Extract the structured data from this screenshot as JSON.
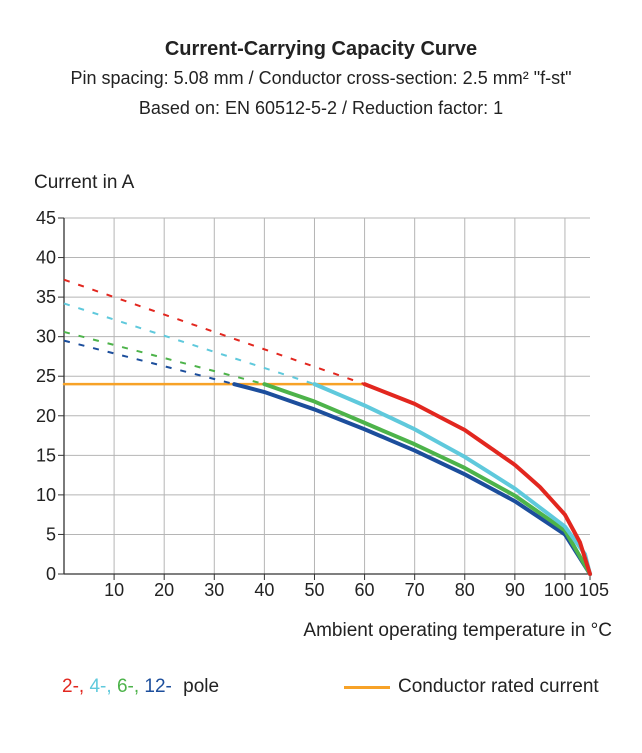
{
  "chart_data": {
    "type": "line",
    "title": "Current-Carrying Capacity Curve",
    "subtitle_1": "Pin spacing: 5.08 mm / Conductor cross-section: 2.5 mm² \"f-st\"",
    "subtitle_2": "Based on: EN 60512-5-2 / Reduction factor: 1",
    "ylabel": "Current in A",
    "xlabel": "Ambient operating temperature in °C",
    "xlim": [
      0,
      105
    ],
    "ylim": [
      0,
      45
    ],
    "x_ticks": [
      "10",
      "20",
      "30",
      "40",
      "50",
      "60",
      "70",
      "80",
      "90",
      "100",
      "105"
    ],
    "y_ticks": [
      "0",
      "5",
      "10",
      "15",
      "20",
      "25",
      "30",
      "35",
      "40",
      "45"
    ],
    "grid": true,
    "series": [
      {
        "name": "2-",
        "color": "#e2271f",
        "dashed": [
          [
            0,
            37.2
          ],
          [
            60,
            24
          ]
        ],
        "values": [
          [
            60,
            24
          ],
          [
            70,
            21.5
          ],
          [
            80,
            18.2
          ],
          [
            90,
            13.8
          ],
          [
            95,
            11
          ],
          [
            100,
            7.5
          ],
          [
            103,
            4
          ],
          [
            105,
            0
          ]
        ]
      },
      {
        "name": "4-",
        "color": "#5fc9dc",
        "dashed": [
          [
            0,
            34.2
          ],
          [
            50,
            24
          ]
        ],
        "values": [
          [
            50,
            24
          ],
          [
            60,
            21.3
          ],
          [
            70,
            18.3
          ],
          [
            80,
            14.8
          ],
          [
            90,
            10.8
          ],
          [
            100,
            6
          ],
          [
            104,
            2.5
          ],
          [
            105,
            0
          ]
        ]
      },
      {
        "name": "6-",
        "color": "#4db34a",
        "dashed": [
          [
            0,
            30.6
          ],
          [
            40,
            24
          ]
        ],
        "values": [
          [
            40,
            24
          ],
          [
            50,
            21.8
          ],
          [
            60,
            19.1
          ],
          [
            70,
            16.4
          ],
          [
            80,
            13.4
          ],
          [
            90,
            9.9
          ],
          [
            100,
            5.5
          ],
          [
            105,
            0
          ]
        ]
      },
      {
        "name": "12-",
        "color": "#1c4e9c",
        "dashed": [
          [
            0,
            29.5
          ],
          [
            34,
            24
          ]
        ],
        "values": [
          [
            34,
            24
          ],
          [
            40,
            23
          ],
          [
            50,
            20.8
          ],
          [
            60,
            18.3
          ],
          [
            70,
            15.6
          ],
          [
            80,
            12.6
          ],
          [
            90,
            9.2
          ],
          [
            100,
            5
          ],
          [
            105,
            0
          ]
        ]
      },
      {
        "name": "Conductor rated current",
        "color": "#f7a227",
        "values": [
          [
            0,
            24
          ],
          [
            60,
            24
          ]
        ]
      }
    ],
    "legend": {
      "pole_labels": [
        "2-,",
        "4-,",
        "6-,",
        "12-"
      ],
      "pole_suffix": "pole",
      "rated_label": "Conductor rated current"
    }
  }
}
